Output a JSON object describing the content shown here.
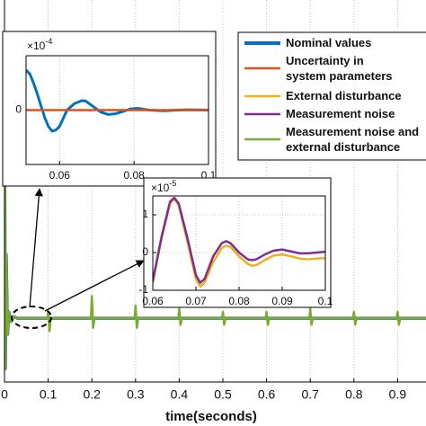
{
  "chart_data": [
    {
      "type": "line",
      "x_label": "time(seconds)",
      "xlim": [
        0,
        0.965
      ],
      "ylim": [
        -0.2,
        1
      ],
      "xticks": [
        0,
        0.1,
        0.2,
        0.3,
        0.4,
        0.5,
        0.6,
        0.7,
        0.8,
        0.9
      ],
      "grid": true,
      "legend": "upper right",
      "series": [
        {
          "name": "Nominal values",
          "color": "#0072bd",
          "x": [
            0,
            0.002,
            0.004,
            0.007,
            0.01,
            0.015,
            0.02,
            0.03,
            0.965
          ],
          "values": [
            0.73,
            -0.158,
            0.2,
            -0.05,
            0.02,
            -0.01,
            0.005,
            0,
            0
          ]
        },
        {
          "name": "Uncertainty in system parameters",
          "color": "#d95319",
          "x": [
            0,
            0.002,
            0.004,
            0.007,
            0.01,
            0.015,
            0.02,
            0.03,
            0.965
          ],
          "values": [
            0.72,
            -0.155,
            0.19,
            -0.05,
            0.02,
            -0.01,
            0.005,
            0,
            0
          ]
        },
        {
          "name": "External disturbance",
          "color": "#edb120",
          "x": [
            0,
            0.002,
            0.004,
            0.007,
            0.01,
            0.015,
            0.02,
            0.03,
            0.965
          ],
          "values": [
            0.73,
            -0.158,
            0.2,
            -0.05,
            0.02,
            -0.01,
            0.005,
            0,
            0
          ]
        },
        {
          "name": "Measurement noise",
          "color": "#7e2f8e",
          "x": [
            0,
            0.002,
            0.004,
            0.007,
            0.01,
            0.015,
            0.02,
            0.03,
            0.965
          ],
          "values": [
            0.73,
            -0.158,
            0.2,
            -0.05,
            0.02,
            -0.01,
            0.005,
            0,
            0
          ]
        },
        {
          "name": "Measurement noise and external disturbance",
          "color": "#77ac30",
          "x": [
            0,
            0.002,
            0.004,
            0.007,
            0.01,
            0.015,
            0.02,
            0.03,
            0.098,
            0.1,
            0.103,
            0.106,
            0.198,
            0.2,
            0.203,
            0.206,
            0.298,
            0.3,
            0.303,
            0.306,
            0.398,
            0.4,
            0.403,
            0.406,
            0.498,
            0.5,
            0.503,
            0.506,
            0.598,
            0.6,
            0.603,
            0.606,
            0.698,
            0.7,
            0.703,
            0.706,
            0.798,
            0.8,
            0.803,
            0.806,
            0.898,
            0.9,
            0.903,
            0.906,
            0.965
          ],
          "values": [
            0.75,
            -0.16,
            0.2,
            -0.05,
            0.02,
            -0.01,
            0.005,
            0,
            0,
            0.02,
            -0.04,
            0,
            0,
            0.07,
            -0.03,
            0,
            0,
            0.04,
            -0.03,
            0,
            0,
            0.03,
            -0.02,
            0,
            0,
            0.02,
            -0.02,
            0,
            0,
            0.02,
            -0.02,
            0,
            0,
            0.03,
            -0.02,
            0,
            0,
            0.02,
            -0.02,
            0,
            0,
            0.02,
            -0.02,
            0,
            0
          ]
        }
      ]
    },
    {
      "type": "line",
      "xlim": [
        0.051,
        0.1
      ],
      "ylim": [
        -1.5,
        1.5
      ],
      "xticks": [
        0.06,
        0.08,
        0.1
      ],
      "yticks": [
        0
      ],
      "y_multiplier": "×10",
      "y_multiplier_exponent": "-4",
      "grid": true,
      "series": [
        {
          "color": "#0072bd",
          "x": [
            0.051,
            0.052,
            0.053,
            0.054,
            0.055,
            0.056,
            0.057,
            0.058,
            0.059,
            0.06,
            0.062,
            0.064,
            0.066,
            0.067,
            0.069,
            0.071,
            0.073,
            0.075,
            0.077,
            0.079,
            0.081,
            0.084,
            0.088,
            0.094,
            0.1
          ],
          "values": [
            1.1,
            1.0,
            0.75,
            0.45,
            0.12,
            -0.2,
            -0.45,
            -0.58,
            -0.55,
            -0.45,
            0.0,
            0.18,
            0.26,
            0.25,
            0.1,
            -0.05,
            -0.12,
            -0.1,
            -0.04,
            0.03,
            0.05,
            0.0,
            -0.02,
            0.01,
            0.0
          ]
        },
        {
          "color": "#d95319",
          "x": [
            0.051,
            0.1
          ],
          "values": [
            0,
            0
          ]
        }
      ]
    },
    {
      "type": "line",
      "xlim": [
        0.06,
        0.1
      ],
      "ylim": [
        -1,
        1.5
      ],
      "xticks": [
        0.06,
        0.07,
        0.08,
        0.09,
        0.1
      ],
      "yticks": [
        -1,
        0,
        1
      ],
      "y_multiplier": "×10",
      "y_multiplier_exponent": "-5",
      "grid": true,
      "series": [
        {
          "color": "#edb120",
          "x": [
            0.06,
            0.062,
            0.064,
            0.065,
            0.066,
            0.068,
            0.07,
            0.071,
            0.072,
            0.074,
            0.076,
            0.077,
            0.078,
            0.08,
            0.082,
            0.083,
            0.084,
            0.086,
            0.088,
            0.09,
            0.092,
            0.094,
            0.096,
            0.098,
            0.1
          ],
          "values": [
            -0.8,
            0.35,
            1.3,
            1.42,
            1.25,
            0.3,
            -0.7,
            -0.9,
            -0.8,
            -0.25,
            0.12,
            0.18,
            0.15,
            -0.1,
            -0.3,
            -0.35,
            -0.33,
            -0.2,
            -0.08,
            -0.05,
            -0.1,
            -0.16,
            -0.18,
            -0.16,
            -0.15
          ]
        },
        {
          "color": "#7e2f8e",
          "x": [
            0.06,
            0.062,
            0.064,
            0.065,
            0.066,
            0.068,
            0.07,
            0.071,
            0.072,
            0.074,
            0.076,
            0.077,
            0.078,
            0.08,
            0.082,
            0.083,
            0.084,
            0.086,
            0.088,
            0.09,
            0.092,
            0.094,
            0.096,
            0.098,
            0.1
          ],
          "values": [
            -0.75,
            0.4,
            1.35,
            1.45,
            1.3,
            0.4,
            -0.6,
            -0.8,
            -0.7,
            -0.1,
            0.25,
            0.3,
            0.25,
            0.0,
            -0.18,
            -0.2,
            -0.18,
            -0.05,
            0.05,
            0.08,
            0.03,
            -0.02,
            -0.02,
            0.0,
            0.02
          ]
        }
      ]
    }
  ]
}
